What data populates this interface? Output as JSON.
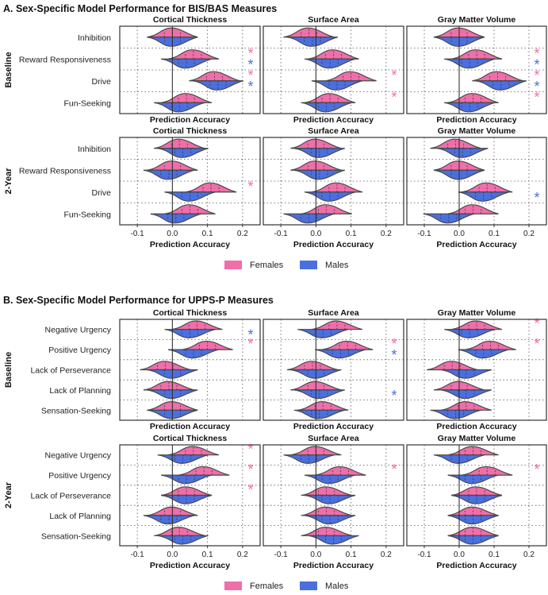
{
  "colors": {
    "females": "#f06eaa",
    "males": "#4a6fe0",
    "frame": "#333333",
    "grid": "#555555",
    "violin_edge": "#4a4a4a"
  },
  "x_label": "Prediction Accuracy",
  "x_ticks": [
    -0.1,
    0.0,
    0.1,
    0.2
  ],
  "x_tick_labels": [
    "-0.1",
    "0.0",
    "0.1",
    "0.2"
  ],
  "legend": {
    "females": "Females",
    "males": "Males"
  },
  "star": "*",
  "chart_data": [
    {
      "type": "violin",
      "title": "A. Sex-Specific Model Performance for BIS/BAS Measures",
      "panels": [
        "Cortical Thickness",
        "Surface Area",
        "Gray Matter Volume"
      ],
      "xlabel": "Prediction Accuracy",
      "xlim": [
        -0.15,
        0.25
      ],
      "rows": [
        {
          "timepoint": "Baseline",
          "measures": [
            "Inhibition",
            "Reward Responsiveness",
            "Drive",
            "Fun-Seeking"
          ],
          "females": [
            [
              0.0,
              0.06,
              0.12,
              0.04
            ],
            [
              -0.02,
              0.05,
              0.1,
              0.04
            ],
            [
              0.0,
              0.05,
              0.11,
              0.04
            ]
          ],
          "males": [
            [
              0.0,
              0.04,
              0.13,
              0.02
            ],
            [
              -0.01,
              0.04,
              0.06,
              0.03
            ],
            [
              0.0,
              0.03,
              0.12,
              0.03
            ]
          ],
          "sig_females": [
            [
              false,
              true,
              true,
              false
            ],
            [
              false,
              false,
              true,
              true
            ],
            [
              false,
              true,
              true,
              true
            ]
          ],
          "sig_males": [
            [
              false,
              true,
              true,
              false
            ],
            [
              false,
              false,
              false,
              false
            ],
            [
              false,
              true,
              true,
              false
            ]
          ]
        },
        {
          "timepoint": "2-Year",
          "measures": [
            "Inhibition",
            "Reward Responsiveness",
            "Drive",
            "Fun-Seeking"
          ],
          "females": [
            [
              0.02,
              0.0,
              0.11,
              0.05
            ],
            [
              0.0,
              0.0,
              0.06,
              0.03
            ],
            [
              -0.01,
              0.0,
              0.08,
              0.04
            ]
          ],
          "males": [
            [
              0.03,
              -0.01,
              0.05,
              0.01
            ],
            [
              0.01,
              0.01,
              0.04,
              -0.02
            ],
            [
              0.01,
              0.0,
              0.07,
              -0.03
            ]
          ],
          "sig_females": [
            [
              false,
              false,
              true,
              false
            ],
            [
              false,
              false,
              false,
              false
            ],
            [
              false,
              false,
              false,
              false
            ]
          ],
          "sig_males": [
            [
              false,
              false,
              false,
              false
            ],
            [
              false,
              false,
              false,
              false
            ],
            [
              false,
              false,
              true,
              false
            ]
          ]
        }
      ]
    },
    {
      "type": "violin",
      "title": "B. Sex-Specific Model Performance for UPPS-P Measures",
      "panels": [
        "Cortical Thickness",
        "Surface Area",
        "Gray Matter Volume"
      ],
      "xlabel": "Prediction Accuracy",
      "xlim": [
        -0.15,
        0.25
      ],
      "rows": [
        {
          "timepoint": "Baseline",
          "measures": [
            "Negative Urgency",
            "Positive Urgency",
            "Lack of Perseverance",
            "Lack of Planning",
            "Sensation-Seeking"
          ],
          "females": [
            [
              0.07,
              0.1,
              -0.02,
              -0.01,
              0.0
            ],
            [
              0.06,
              0.09,
              -0.01,
              0.0,
              0.02
            ],
            [
              0.05,
              0.09,
              -0.02,
              0.0,
              0.02
            ]
          ],
          "males": [
            [
              0.05,
              0.06,
              0.0,
              0.0,
              0.0
            ],
            [
              0.02,
              0.07,
              0.0,
              0.01,
              0.01
            ],
            [
              0.03,
              0.07,
              0.02,
              0.02,
              -0.01
            ]
          ],
          "sig_females": [
            [
              false,
              true,
              false,
              false,
              false
            ],
            [
              false,
              true,
              false,
              false,
              false
            ],
            [
              true,
              true,
              false,
              false,
              false
            ]
          ],
          "sig_males": [
            [
              true,
              false,
              false,
              false,
              false
            ],
            [
              false,
              true,
              false,
              true,
              false
            ],
            [
              false,
              false,
              false,
              false,
              false
            ]
          ]
        },
        {
          "timepoint": "2-Year",
          "measures": [
            "Negative Urgency",
            "Positive Urgency",
            "Lack of Perseverance",
            "Lack of Planning",
            "Sensation-Seeking"
          ],
          "females": [
            [
              0.06,
              0.09,
              0.04,
              0.0,
              0.02
            ],
            [
              0.0,
              0.07,
              0.03,
              0.03,
              0.03
            ],
            [
              0.04,
              0.08,
              0.05,
              0.04,
              0.04
            ]
          ],
          "males": [
            [
              0.03,
              0.04,
              0.04,
              -0.01,
              0.03
            ],
            [
              -0.02,
              0.04,
              0.04,
              0.04,
              0.05
            ],
            [
              0.0,
              0.04,
              0.05,
              0.04,
              0.04
            ]
          ],
          "sig_females": [
            [
              true,
              true,
              true,
              false,
              false
            ],
            [
              false,
              true,
              false,
              false,
              false
            ],
            [
              false,
              true,
              false,
              false,
              false
            ]
          ],
          "sig_males": [
            [
              false,
              false,
              false,
              false,
              false
            ],
            [
              false,
              false,
              false,
              false,
              false
            ],
            [
              false,
              false,
              false,
              false,
              false
            ]
          ]
        }
      ]
    }
  ]
}
